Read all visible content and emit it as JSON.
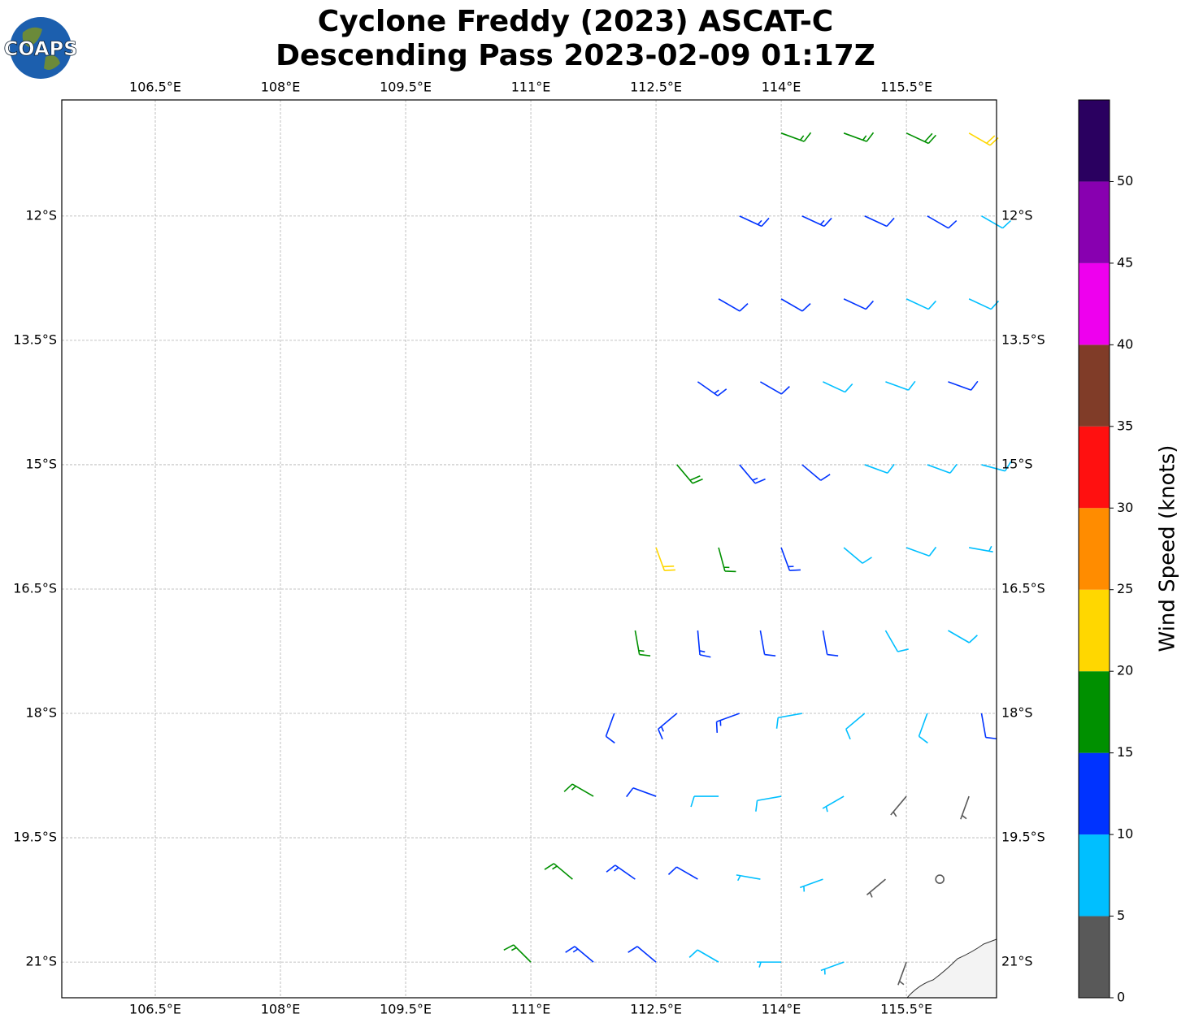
{
  "chart_data": {
    "type": "barbs",
    "logo_text": "COAPS",
    "title": [
      "Cyclone Freddy (2023) ASCAT-C",
      "Descending Pass 2023-02-09 01:17Z"
    ],
    "xlim": [
      105.38,
      116.58
    ],
    "ylim": [
      -21.43,
      -10.6
    ],
    "xticks": [
      {
        "value": 106.5,
        "label": "106.5°E"
      },
      {
        "value": 108,
        "label": "108°E"
      },
      {
        "value": 109.5,
        "label": "109.5°E"
      },
      {
        "value": 111,
        "label": "111°E"
      },
      {
        "value": 112.5,
        "label": "112.5°E"
      },
      {
        "value": 114,
        "label": "114°E"
      },
      {
        "value": 115.5,
        "label": "115.5°E"
      }
    ],
    "yticks": [
      {
        "value": -12,
        "label": "12°S"
      },
      {
        "value": -13.5,
        "label": "13.5°S"
      },
      {
        "value": -15,
        "label": "15°S"
      },
      {
        "value": -16.5,
        "label": "16.5°S"
      },
      {
        "value": -18,
        "label": "18°S"
      },
      {
        "value": -19.5,
        "label": "19.5°S"
      },
      {
        "value": -21,
        "label": "21°S"
      }
    ],
    "grid": true,
    "colorbar": {
      "label": "Wind Speed (knots)",
      "lim": [
        0,
        55
      ],
      "ticks": [
        0,
        5,
        10,
        15,
        20,
        25,
        30,
        35,
        40,
        45,
        50
      ],
      "colors": [
        "#595959",
        "#00bfff",
        "#0033ff",
        "#009000",
        "#ffd700",
        "#ff8c00",
        "#ff1010",
        "#803c28",
        "#ee00ee",
        "#8800b0",
        "#2a0060"
      ]
    },
    "barbs": [
      [
        114.0,
        -11,
        17,
        110
      ],
      [
        114.75,
        -11,
        17,
        110
      ],
      [
        115.5,
        -11,
        18,
        115
      ],
      [
        116.25,
        -11,
        22,
        120
      ],
      [
        113.5,
        -12,
        13,
        115
      ],
      [
        114.25,
        -12,
        13,
        115
      ],
      [
        115.0,
        -12,
        12,
        115
      ],
      [
        115.75,
        -12,
        11,
        120
      ],
      [
        116.4,
        -12,
        8,
        120
      ],
      [
        113.25,
        -13,
        12,
        120
      ],
      [
        114.0,
        -13,
        12,
        120
      ],
      [
        114.75,
        -13,
        11,
        115
      ],
      [
        115.5,
        -13,
        9,
        115
      ],
      [
        116.25,
        -13,
        8,
        115
      ],
      [
        113.0,
        -14,
        13,
        125
      ],
      [
        113.75,
        -14,
        12,
        120
      ],
      [
        114.5,
        -14,
        9,
        115
      ],
      [
        115.25,
        -14,
        9,
        110
      ],
      [
        116.0,
        -14,
        10,
        110
      ],
      [
        112.75,
        -15,
        18,
        140
      ],
      [
        113.5,
        -15,
        13,
        140
      ],
      [
        114.25,
        -15,
        11,
        130
      ],
      [
        115.0,
        -15,
        9,
        110
      ],
      [
        115.75,
        -15,
        8,
        110
      ],
      [
        116.4,
        -15,
        8,
        105
      ],
      [
        112.5,
        -16,
        22,
        160
      ],
      [
        113.25,
        -16,
        16,
        165
      ],
      [
        114.0,
        -16,
        13,
        160
      ],
      [
        114.75,
        -16,
        8,
        130
      ],
      [
        115.5,
        -16,
        8,
        110
      ],
      [
        116.25,
        -16,
        7,
        100
      ],
      [
        112.25,
        -17,
        17,
        170
      ],
      [
        113.0,
        -17,
        13,
        175
      ],
      [
        113.75,
        -17,
        12,
        170
      ],
      [
        114.5,
        -17,
        12,
        170
      ],
      [
        115.25,
        -17,
        9,
        150
      ],
      [
        116.0,
        -17,
        8,
        120
      ],
      [
        112.0,
        -18,
        12,
        200
      ],
      [
        112.75,
        -18,
        13,
        230
      ],
      [
        113.5,
        -18,
        13,
        250
      ],
      [
        114.25,
        -18,
        9,
        260
      ],
      [
        115.0,
        -18,
        8,
        230
      ],
      [
        115.75,
        -18,
        8,
        200
      ],
      [
        116.4,
        -18,
        11,
        170
      ],
      [
        111.75,
        -19,
        16,
        300
      ],
      [
        112.5,
        -19,
        12,
        290
      ],
      [
        113.25,
        -19,
        9,
        270
      ],
      [
        114.0,
        -19,
        8,
        260
      ],
      [
        114.75,
        -19,
        7,
        240
      ],
      [
        115.5,
        -19,
        3,
        220
      ],
      [
        116.25,
        -19,
        4,
        200
      ],
      [
        111.5,
        -20,
        16,
        310
      ],
      [
        112.25,
        -20,
        13,
        305
      ],
      [
        113.0,
        -20,
        11,
        300
      ],
      [
        113.75,
        -20,
        7,
        280
      ],
      [
        114.5,
        -20,
        7,
        250
      ],
      [
        115.25,
        -20,
        3,
        230
      ],
      [
        115.9,
        -20,
        1,
        0
      ],
      [
        111.0,
        -21,
        17,
        315
      ],
      [
        111.75,
        -21,
        14,
        310
      ],
      [
        112.5,
        -21,
        12,
        310
      ],
      [
        113.25,
        -21,
        8,
        300
      ],
      [
        114.0,
        -21,
        7,
        270
      ],
      [
        114.75,
        -21,
        6,
        250
      ],
      [
        115.5,
        -21,
        3,
        200
      ]
    ]
  }
}
